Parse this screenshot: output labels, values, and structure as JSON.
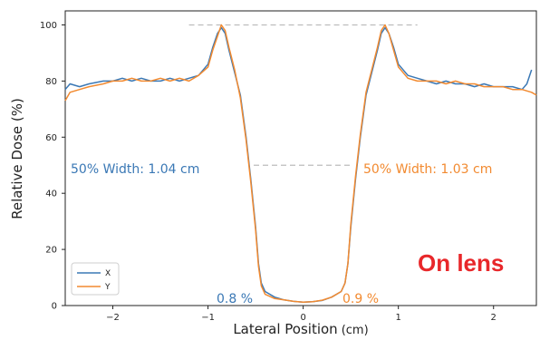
{
  "chart_data": {
    "type": "line",
    "title": "",
    "xlabel": "Lateral Position",
    "xlabel_unit": "(cm)",
    "ylabel": "Relative Dose (%)",
    "xlim": [
      -2.5,
      2.45
    ],
    "ylim": [
      0,
      105
    ],
    "x_ticks": [
      -2,
      -1,
      0,
      1,
      2
    ],
    "x_tick_labels": [
      "−2",
      "−1",
      "0",
      "1",
      "2"
    ],
    "y_ticks": [
      0,
      20,
      40,
      60,
      80,
      100
    ],
    "y_tick_labels": [
      "0",
      "20",
      "40",
      "60",
      "80",
      "100"
    ],
    "grid": false,
    "legend": "bottom-left",
    "series": [
      {
        "name": "X",
        "color": "#3a78b5",
        "points": [
          [
            -2.5,
            77
          ],
          [
            -2.45,
            79
          ],
          [
            -2.35,
            78
          ],
          [
            -2.25,
            79
          ],
          [
            -2.1,
            80
          ],
          [
            -2.0,
            80
          ],
          [
            -1.9,
            81
          ],
          [
            -1.8,
            80
          ],
          [
            -1.7,
            81
          ],
          [
            -1.6,
            80
          ],
          [
            -1.5,
            80
          ],
          [
            -1.4,
            81
          ],
          [
            -1.3,
            80
          ],
          [
            -1.2,
            81
          ],
          [
            -1.1,
            82
          ],
          [
            -1.0,
            86
          ],
          [
            -0.95,
            92
          ],
          [
            -0.9,
            97
          ],
          [
            -0.86,
            99
          ],
          [
            -0.82,
            97
          ],
          [
            -0.78,
            91
          ],
          [
            -0.72,
            83
          ],
          [
            -0.66,
            75
          ],
          [
            -0.6,
            60
          ],
          [
            -0.55,
            45
          ],
          [
            -0.5,
            28
          ],
          [
            -0.47,
            15
          ],
          [
            -0.44,
            8
          ],
          [
            -0.4,
            5
          ],
          [
            -0.3,
            3
          ],
          [
            -0.2,
            2
          ],
          [
            -0.1,
            1.5
          ],
          [
            0.0,
            1.2
          ],
          [
            0.1,
            1.4
          ],
          [
            0.2,
            1.8
          ],
          [
            0.3,
            3
          ],
          [
            0.4,
            5
          ],
          [
            0.44,
            8
          ],
          [
            0.47,
            15
          ],
          [
            0.5,
            28
          ],
          [
            0.55,
            45
          ],
          [
            0.6,
            60
          ],
          [
            0.66,
            75
          ],
          [
            0.72,
            83
          ],
          [
            0.78,
            91
          ],
          [
            0.82,
            97
          ],
          [
            0.86,
            99
          ],
          [
            0.9,
            97
          ],
          [
            0.95,
            92
          ],
          [
            1.0,
            86
          ],
          [
            1.1,
            82
          ],
          [
            1.2,
            81
          ],
          [
            1.3,
            80
          ],
          [
            1.4,
            79
          ],
          [
            1.5,
            80
          ],
          [
            1.6,
            79
          ],
          [
            1.7,
            79
          ],
          [
            1.8,
            78
          ],
          [
            1.9,
            79
          ],
          [
            2.0,
            78
          ],
          [
            2.1,
            78
          ],
          [
            2.2,
            78
          ],
          [
            2.3,
            77
          ],
          [
            2.35,
            79
          ],
          [
            2.4,
            84
          ]
        ]
      },
      {
        "name": "Y",
        "color": "#f28a30",
        "points": [
          [
            -2.5,
            73
          ],
          [
            -2.45,
            76
          ],
          [
            -2.35,
            77
          ],
          [
            -2.25,
            78
          ],
          [
            -2.1,
            79
          ],
          [
            -2.0,
            80
          ],
          [
            -1.9,
            80
          ],
          [
            -1.8,
            81
          ],
          [
            -1.7,
            80
          ],
          [
            -1.6,
            80
          ],
          [
            -1.5,
            81
          ],
          [
            -1.4,
            80
          ],
          [
            -1.3,
            81
          ],
          [
            -1.2,
            80
          ],
          [
            -1.1,
            82
          ],
          [
            -1.0,
            85
          ],
          [
            -0.95,
            91
          ],
          [
            -0.9,
            96
          ],
          [
            -0.86,
            100
          ],
          [
            -0.82,
            98
          ],
          [
            -0.78,
            92
          ],
          [
            -0.72,
            84
          ],
          [
            -0.66,
            74
          ],
          [
            -0.6,
            59
          ],
          [
            -0.55,
            44
          ],
          [
            -0.5,
            27
          ],
          [
            -0.47,
            14
          ],
          [
            -0.44,
            7
          ],
          [
            -0.4,
            4
          ],
          [
            -0.3,
            2.5
          ],
          [
            -0.2,
            2
          ],
          [
            -0.1,
            1.5
          ],
          [
            0.0,
            1.2
          ],
          [
            0.1,
            1.4
          ],
          [
            0.2,
            1.9
          ],
          [
            0.3,
            3
          ],
          [
            0.4,
            5
          ],
          [
            0.44,
            8
          ],
          [
            0.47,
            15
          ],
          [
            0.5,
            29
          ],
          [
            0.55,
            46
          ],
          [
            0.6,
            61
          ],
          [
            0.66,
            76
          ],
          [
            0.72,
            84
          ],
          [
            0.78,
            92
          ],
          [
            0.82,
            98
          ],
          [
            0.86,
            100
          ],
          [
            0.9,
            97
          ],
          [
            0.95,
            91
          ],
          [
            1.0,
            85
          ],
          [
            1.1,
            81
          ],
          [
            1.2,
            80
          ],
          [
            1.3,
            80
          ],
          [
            1.4,
            80
          ],
          [
            1.5,
            79
          ],
          [
            1.6,
            80
          ],
          [
            1.7,
            79
          ],
          [
            1.8,
            79
          ],
          [
            1.9,
            78
          ],
          [
            2.0,
            78
          ],
          [
            2.1,
            78
          ],
          [
            2.2,
            77
          ],
          [
            2.3,
            77
          ],
          [
            2.4,
            76
          ],
          [
            2.45,
            75
          ]
        ]
      }
    ],
    "reference_lines": [
      {
        "y": 100,
        "x_from": -1.2,
        "x_to": 1.2,
        "color": "#bdbdbd"
      },
      {
        "y": 50,
        "x_from": -0.52,
        "x_to": 0.52,
        "color": "#bdbdbd"
      }
    ],
    "annotations": [
      {
        "text": "50% Width: 1.04 cm",
        "color": "#3a78b5"
      },
      {
        "text": "50% Width: 1.03 cm",
        "color": "#f28a30"
      },
      {
        "text": "0.8 %",
        "color": "#3a78b5"
      },
      {
        "text": "0.9 %",
        "color": "#f28a30"
      },
      {
        "text": "On lens",
        "color": "#e8272a"
      }
    ]
  }
}
